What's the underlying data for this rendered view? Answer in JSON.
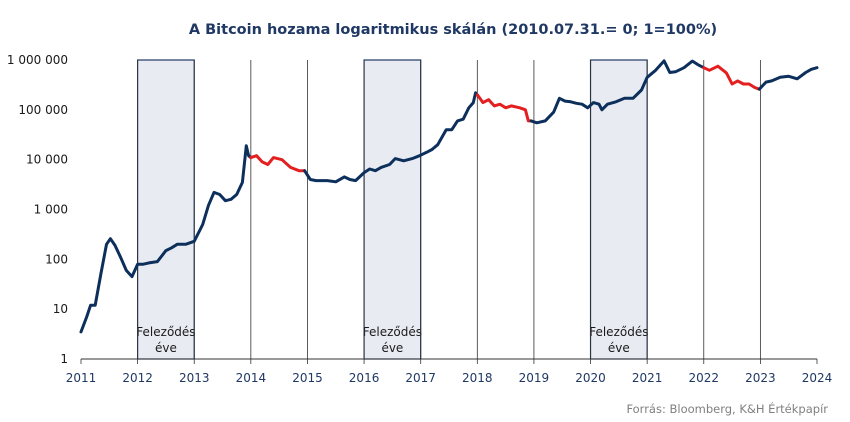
{
  "chart_data": {
    "type": "line",
    "title": "A Bitcoin hozama logaritmikus skálán (2010.07.31.=  0;  1=100%)",
    "source": "Forrás: Bloomberg,  K&H Értékpapír",
    "y_scale": "log",
    "ylim": [
      1,
      1000000
    ],
    "y_ticks": [
      {
        "value": 1,
        "label": "1"
      },
      {
        "value": 10,
        "label": "10"
      },
      {
        "value": 100,
        "label": "100"
      },
      {
        "value": 1000,
        "label": "1 000"
      },
      {
        "value": 10000,
        "label": "10 000"
      },
      {
        "value": 100000,
        "label": "100 000"
      },
      {
        "value": 1000000,
        "label": "1 000 000"
      }
    ],
    "xlim": [
      2011,
      2024
    ],
    "x_ticks": [
      "2011",
      "2012",
      "2013",
      "2014",
      "2015",
      "2016",
      "2017",
      "2018",
      "2019",
      "2020",
      "2021",
      "2022",
      "2023",
      "2024"
    ],
    "vertical_grid": true,
    "colors": {
      "rising": "#0d2f5c",
      "drawdown": "#e41f1f",
      "band_fill": "#e8ecf2",
      "band_border": "#1f3864",
      "grid": "#333333"
    },
    "halving_bands": [
      {
        "start": 2012.0,
        "end": 2013.0,
        "label_line1": "Feleződés",
        "label_line2": "éve"
      },
      {
        "start": 2016.0,
        "end": 2017.0,
        "label_line1": "Feleződés",
        "label_line2": "éve"
      },
      {
        "start": 2020.0,
        "end": 2021.0,
        "label_line1": "Feleződés",
        "label_line2": "éve"
      }
    ],
    "series": [
      {
        "color_key": "rising",
        "points": [
          [
            2011.0,
            3.5
          ],
          [
            2011.1,
            7
          ],
          [
            2011.17,
            12
          ],
          [
            2011.25,
            12
          ],
          [
            2011.35,
            50
          ],
          [
            2011.45,
            200
          ],
          [
            2011.52,
            260
          ],
          [
            2011.6,
            190
          ],
          [
            2011.7,
            110
          ],
          [
            2011.8,
            60
          ],
          [
            2011.9,
            45
          ],
          [
            2012.0,
            80
          ],
          [
            2012.1,
            80
          ],
          [
            2012.2,
            85
          ],
          [
            2012.35,
            90
          ],
          [
            2012.5,
            150
          ],
          [
            2012.6,
            170
          ],
          [
            2012.7,
            200
          ],
          [
            2012.85,
            200
          ],
          [
            2013.0,
            230
          ],
          [
            2013.15,
            500
          ],
          [
            2013.25,
            1200
          ],
          [
            2013.35,
            2200
          ],
          [
            2013.45,
            2000
          ],
          [
            2013.55,
            1500
          ],
          [
            2013.65,
            1600
          ],
          [
            2013.75,
            2000
          ],
          [
            2013.85,
            3500
          ],
          [
            2013.92,
            19000
          ],
          [
            2013.96,
            12000
          ],
          [
            2014.0,
            11000
          ]
        ]
      },
      {
        "color_key": "drawdown",
        "points": [
          [
            2014.0,
            11000
          ],
          [
            2014.1,
            12000
          ],
          [
            2014.2,
            9000
          ],
          [
            2014.3,
            8000
          ],
          [
            2014.4,
            11000
          ],
          [
            2014.55,
            10000
          ],
          [
            2014.7,
            7000
          ],
          [
            2014.85,
            6000
          ],
          [
            2014.95,
            6000
          ]
        ]
      },
      {
        "color_key": "rising",
        "points": [
          [
            2014.95,
            6000
          ],
          [
            2015.05,
            4000
          ],
          [
            2015.15,
            3800
          ],
          [
            2015.35,
            3800
          ],
          [
            2015.5,
            3600
          ],
          [
            2015.65,
            4500
          ],
          [
            2015.75,
            4000
          ],
          [
            2015.85,
            3800
          ],
          [
            2016.0,
            5500
          ],
          [
            2016.1,
            6500
          ],
          [
            2016.2,
            6000
          ],
          [
            2016.3,
            7000
          ],
          [
            2016.45,
            8000
          ],
          [
            2016.55,
            10500
          ],
          [
            2016.7,
            9500
          ],
          [
            2016.85,
            10500
          ],
          [
            2016.98,
            12000
          ],
          [
            2017.1,
            14000
          ],
          [
            2017.2,
            16000
          ],
          [
            2017.3,
            20000
          ],
          [
            2017.45,
            40000
          ],
          [
            2017.55,
            40000
          ],
          [
            2017.65,
            60000
          ],
          [
            2017.75,
            65000
          ],
          [
            2017.85,
            110000
          ],
          [
            2017.93,
            140000
          ],
          [
            2017.97,
            220000
          ],
          [
            2018.0,
            200000
          ]
        ]
      },
      {
        "color_key": "drawdown",
        "points": [
          [
            2018.0,
            200000
          ],
          [
            2018.1,
            140000
          ],
          [
            2018.2,
            160000
          ],
          [
            2018.3,
            120000
          ],
          [
            2018.4,
            130000
          ],
          [
            2018.5,
            110000
          ],
          [
            2018.6,
            120000
          ],
          [
            2018.75,
            110000
          ],
          [
            2018.85,
            100000
          ],
          [
            2018.9,
            60000
          ],
          [
            2018.95,
            60000
          ]
        ]
      },
      {
        "color_key": "rising",
        "points": [
          [
            2018.95,
            60000
          ],
          [
            2019.05,
            55000
          ],
          [
            2019.2,
            60000
          ],
          [
            2019.35,
            90000
          ],
          [
            2019.45,
            170000
          ],
          [
            2019.55,
            150000
          ],
          [
            2019.65,
            145000
          ],
          [
            2019.75,
            135000
          ],
          [
            2019.85,
            130000
          ],
          [
            2019.95,
            110000
          ],
          [
            2020.05,
            140000
          ],
          [
            2020.15,
            130000
          ],
          [
            2020.2,
            100000
          ],
          [
            2020.3,
            130000
          ],
          [
            2020.45,
            145000
          ],
          [
            2020.6,
            170000
          ],
          [
            2020.75,
            170000
          ],
          [
            2020.9,
            250000
          ],
          [
            2021.0,
            450000
          ],
          [
            2021.15,
            620000
          ],
          [
            2021.3,
            960000
          ],
          [
            2021.4,
            560000
          ],
          [
            2021.5,
            580000
          ],
          [
            2021.65,
            700000
          ],
          [
            2021.8,
            950000
          ],
          [
            2021.9,
            800000
          ],
          [
            2022.0,
            700000
          ]
        ]
      },
      {
        "color_key": "drawdown",
        "points": [
          [
            2022.0,
            700000
          ],
          [
            2022.1,
            620000
          ],
          [
            2022.25,
            750000
          ],
          [
            2022.4,
            550000
          ],
          [
            2022.5,
            330000
          ],
          [
            2022.6,
            380000
          ],
          [
            2022.7,
            330000
          ],
          [
            2022.8,
            330000
          ],
          [
            2022.9,
            280000
          ],
          [
            2022.98,
            260000
          ]
        ]
      },
      {
        "color_key": "rising",
        "points": [
          [
            2022.98,
            260000
          ],
          [
            2023.1,
            360000
          ],
          [
            2023.2,
            380000
          ],
          [
            2023.35,
            450000
          ],
          [
            2023.5,
            470000
          ],
          [
            2023.65,
            420000
          ],
          [
            2023.8,
            560000
          ],
          [
            2023.9,
            650000
          ],
          [
            2024.0,
            700000
          ]
        ]
      }
    ]
  }
}
